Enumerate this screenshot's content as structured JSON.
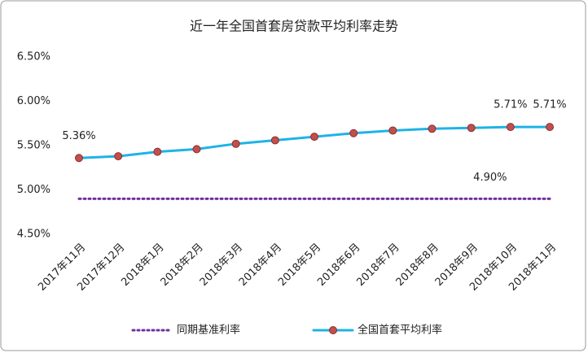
{
  "chart_data": {
    "type": "line",
    "title": "近一年全国首套房贷款平均利率走势",
    "categories": [
      "2017年11月",
      "2017年12月",
      "2018年1月",
      "2018年2月",
      "2018年3月",
      "2018年4月",
      "2018年5月",
      "2018年6月",
      "2018年7月",
      "2018年8月",
      "2018年9月",
      "2018年10月",
      "2018年11月"
    ],
    "series": [
      {
        "name": "同期基准利率",
        "color": "#7030a0",
        "style": "dotted",
        "values": [
          4.9,
          4.9,
          4.9,
          4.9,
          4.9,
          4.9,
          4.9,
          4.9,
          4.9,
          4.9,
          4.9,
          4.9,
          4.9
        ],
        "value_labels": [
          null,
          null,
          null,
          null,
          null,
          null,
          null,
          null,
          null,
          null,
          null,
          "4.90%",
          null
        ]
      },
      {
        "name": "全国首套平均利率",
        "color": "#1fb3e6",
        "marker_color": "#c0504d",
        "style": "solid",
        "values": [
          5.36,
          5.38,
          5.43,
          5.46,
          5.52,
          5.56,
          5.6,
          5.64,
          5.67,
          5.69,
          5.7,
          5.71,
          5.71
        ],
        "value_labels": [
          "5.36%",
          null,
          null,
          null,
          null,
          null,
          null,
          null,
          null,
          null,
          null,
          "5.71%",
          "5.71%"
        ]
      }
    ],
    "ylim": [
      4.5,
      6.5
    ],
    "yticks": [
      {
        "value": 4.5,
        "label": "4.50%"
      },
      {
        "value": 5.0,
        "label": "5.00%"
      },
      {
        "value": 5.5,
        "label": "5.50%"
      },
      {
        "value": 6.0,
        "label": "6.00%"
      },
      {
        "value": 6.5,
        "label": "6.50%"
      }
    ],
    "grid": false,
    "legend": "bottom"
  }
}
